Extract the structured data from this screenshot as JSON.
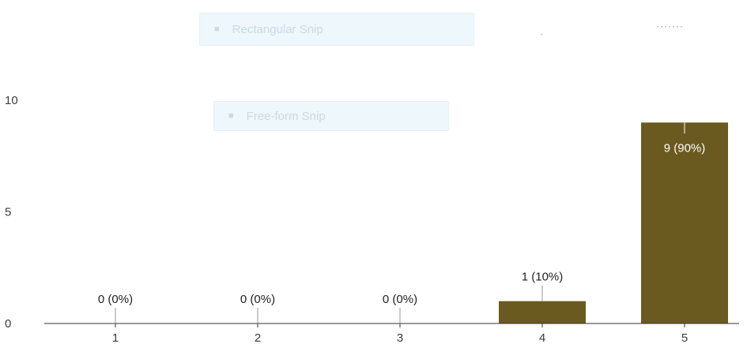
{
  "overlays": {
    "rect_snip": {
      "label": "Rectangular Snip",
      "icon": "snip-icon"
    },
    "freeform_snip": {
      "label": "Free-form Snip",
      "icon": "snip-icon"
    }
  },
  "chart_data": {
    "type": "bar",
    "categories": [
      "1",
      "2",
      "3",
      "4",
      "5"
    ],
    "values": [
      0,
      0,
      0,
      1,
      9
    ],
    "data_labels": [
      "0 (0%)",
      "0 (0%)",
      "0 (0%)",
      "1 (10%)",
      "9 (90%)"
    ],
    "yticks": [
      0,
      5,
      10
    ],
    "ylim": [
      0,
      10.7
    ],
    "bar_color": "#6b5a1f",
    "grid": false,
    "legend": "none"
  }
}
